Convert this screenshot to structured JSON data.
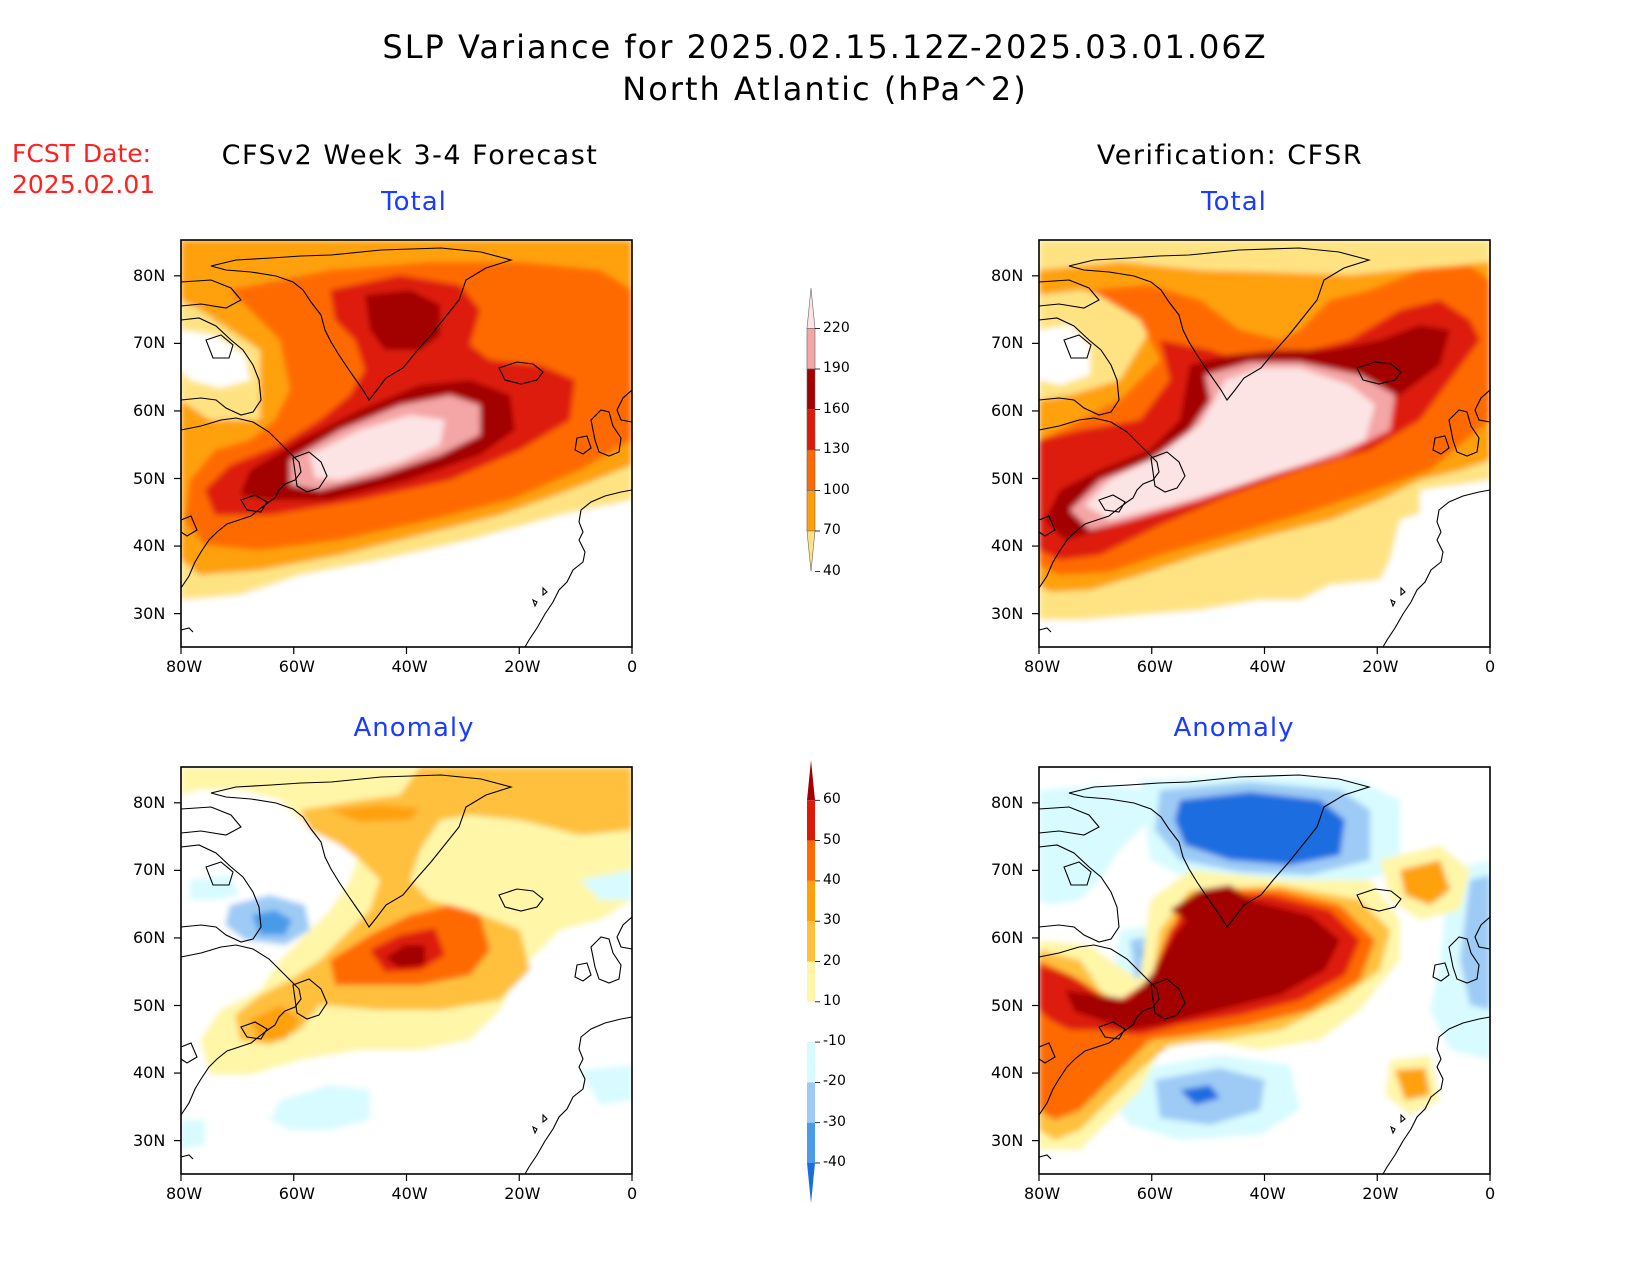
{
  "header": {
    "title_line1": "SLP Variance for 2025.02.15.12Z-2025.03.01.06Z",
    "title_line2": "North Atlantic (hPa^2)",
    "fcst_label": "FCST Date:",
    "fcst_date": "2025.02.01",
    "left_column": "CFSv2 Week 3-4 Forecast",
    "right_column": "Verification: CFSR"
  },
  "panels": {
    "top_left": "Total",
    "top_right": "Total",
    "bottom_left": "Anomaly",
    "bottom_right": "Anomaly"
  },
  "axes": {
    "lat_labels": [
      "80N",
      "70N",
      "60N",
      "50N",
      "40N",
      "30N"
    ],
    "lon_labels": [
      "80W",
      "60W",
      "40W",
      "20W",
      "0"
    ]
  },
  "colorbar_total": {
    "levels": [
      "220",
      "190",
      "160",
      "130",
      "100",
      "70",
      "40"
    ],
    "colors": [
      "#fde4e4",
      "#f4a5a5",
      "#a30000",
      "#dd1a0a",
      "#ff6a00",
      "#ffa00a",
      "#ffe383"
    ]
  },
  "colorbar_anomaly": {
    "levels": [
      "60",
      "50",
      "40",
      "30",
      "20",
      "10",
      "-10",
      "-20",
      "-30",
      "-40"
    ],
    "colors": [
      "#a30000",
      "#dd1a0a",
      "#ff6a00",
      "#ffa00a",
      "#ffc03c",
      "#fff6a8",
      "#ffffff",
      "#d8fbff",
      "#9dcbf5",
      "#4a9be8",
      "#1a6de0"
    ]
  }
}
